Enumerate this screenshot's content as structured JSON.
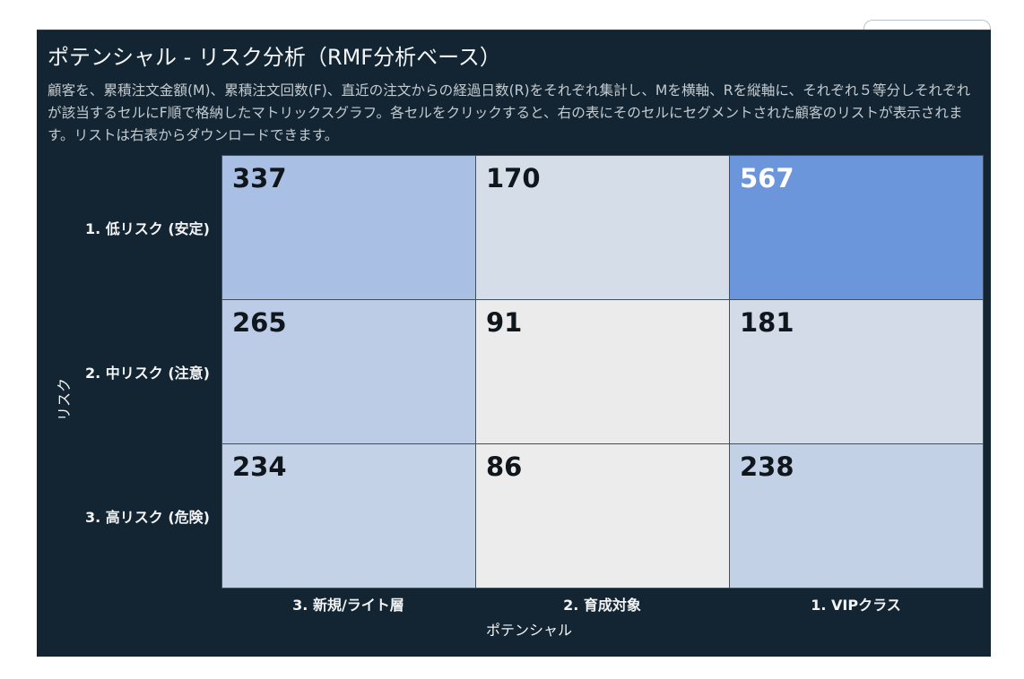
{
  "title": "ポテンシャル - リスク分析（RMF分析ベース）",
  "description": "顧客を、累積注文金額(M)、累積注文回数(F)、直近の注文からの経過日数(R)をそれぞれ集計し、Mを横軸、Rを縦軸に、それぞれ５等分しそれぞれが該当するセルにF順で格納したマトリックスグラフ。各セルをクリックすると、右の表にそのセルにセグメントされた顧客のリストが表示されます。リストは右表からダウンロードできます。",
  "chart_data": {
    "type": "heatmap",
    "xlabel": "ポテンシャル",
    "ylabel": "リスク",
    "x_categories": [
      "3. 新規/ライト層",
      "2. 育成対象",
      "1. VIPクラス"
    ],
    "y_categories": [
      "1. 低リスク (安定)",
      "2. 中リスク (注意)",
      "3. 高リスク (危険)"
    ],
    "values": [
      [
        337,
        170,
        567
      ],
      [
        265,
        91,
        181
      ],
      [
        234,
        86,
        238
      ]
    ],
    "color_scale": {
      "low": "#ececec",
      "high": "#6b96db"
    }
  }
}
